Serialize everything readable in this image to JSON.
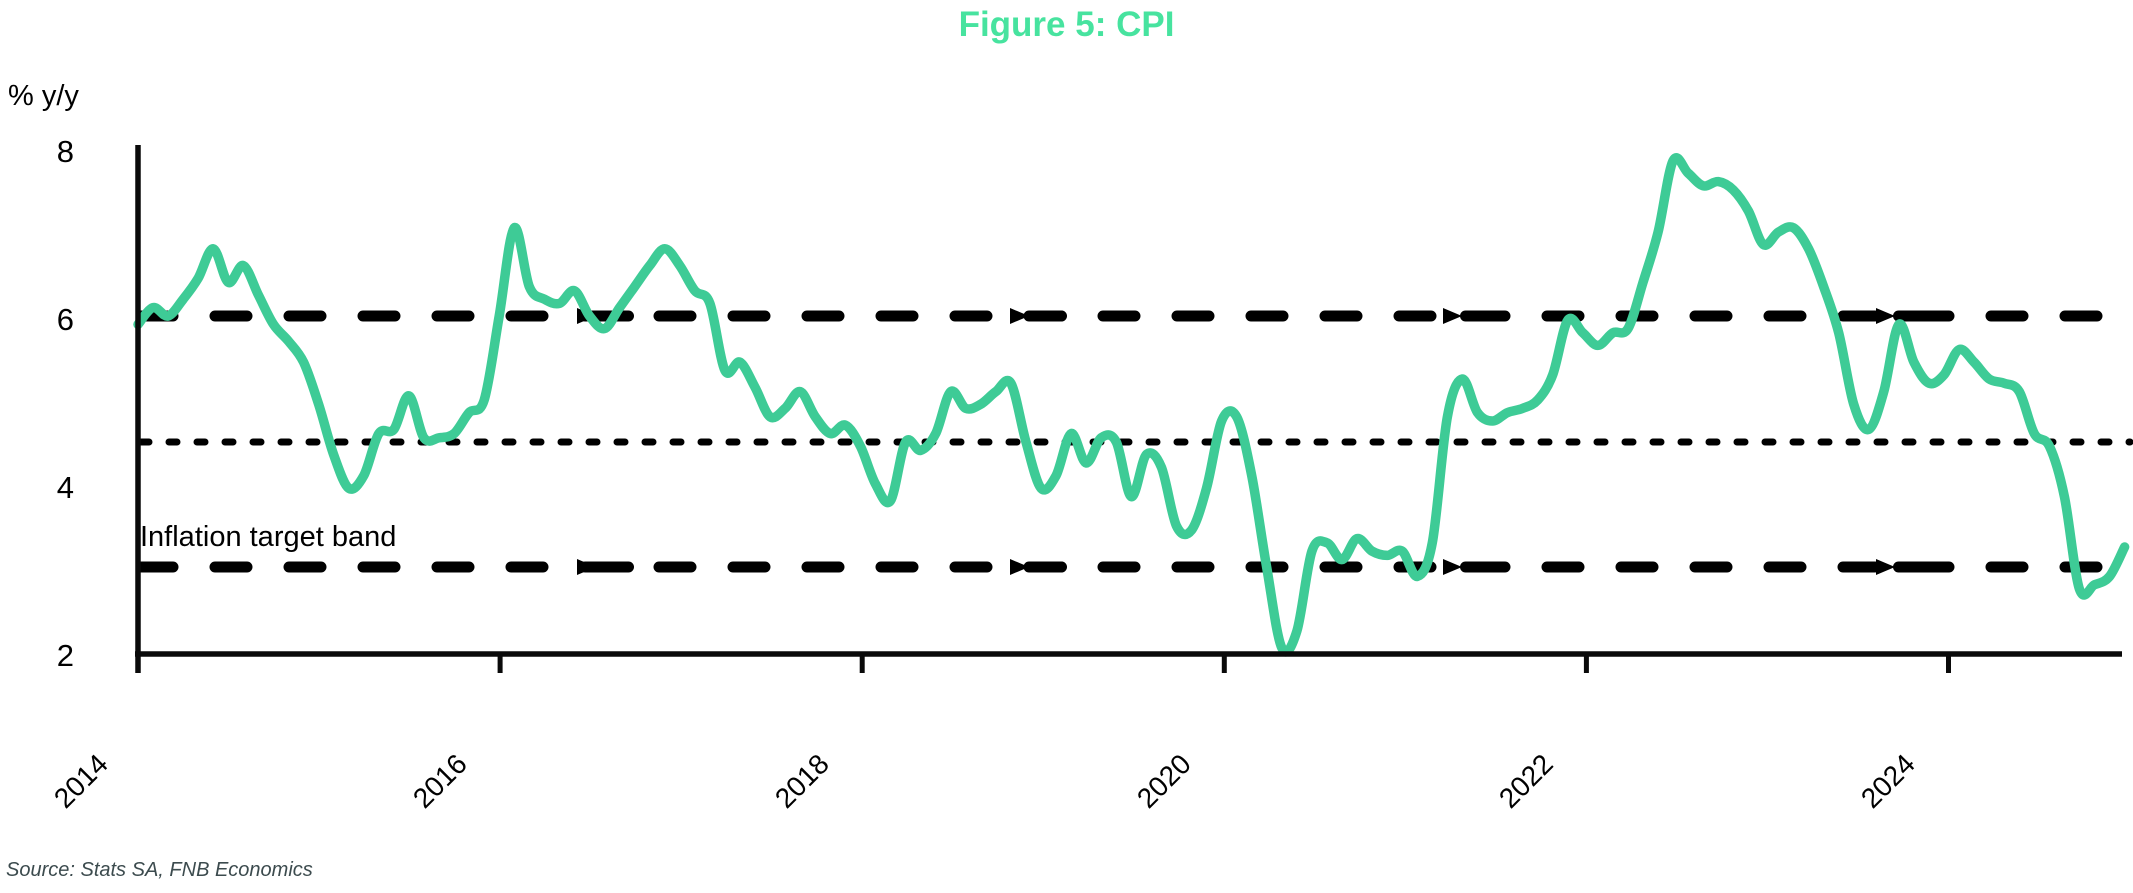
{
  "title": "Figure 5: CPI",
  "source": "Source: Stats SA, FNB Economics",
  "annotation": "Inflation target band",
  "colors": {
    "line": "#3ECB96",
    "title": "#47E39F",
    "axis": "#0A0A0A",
    "band_lines": "#000000",
    "source_text": "#3C4B4E"
  },
  "chart_data": {
    "type": "line",
    "title": "Figure 5: CPI",
    "ylabel": "% y/y",
    "xlabel": "",
    "ylim": [
      2,
      8
    ],
    "yticks": [
      8,
      6,
      4,
      2
    ],
    "ytick_labels": [
      "8",
      "6",
      "4",
      "2"
    ],
    "xtick_labels": [
      "2014",
      "2016",
      "2018",
      "2020",
      "2022",
      "2024"
    ],
    "x_start": "2014-01",
    "x_end": "2025-01",
    "frequency": "monthly",
    "grid": "off",
    "legend": "off",
    "series": [
      {
        "name": "CPI % y/y",
        "values": [
          5.9,
          6.1,
          6.0,
          6.2,
          6.45,
          6.8,
          6.4,
          6.6,
          6.25,
          5.9,
          5.7,
          5.45,
          4.95,
          4.35,
          3.95,
          4.1,
          4.6,
          4.65,
          5.05,
          4.55,
          4.55,
          4.6,
          4.85,
          5.0,
          6.0,
          7.05,
          6.35,
          6.2,
          6.15,
          6.3,
          6.0,
          5.85,
          6.1,
          6.35,
          6.6,
          6.8,
          6.6,
          6.3,
          6.15,
          5.35,
          5.45,
          5.15,
          4.8,
          4.9,
          5.1,
          4.8,
          4.6,
          4.7,
          4.45,
          4.0,
          3.8,
          4.5,
          4.4,
          4.6,
          5.1,
          4.9,
          4.95,
          5.1,
          5.2,
          4.5,
          3.95,
          4.1,
          4.6,
          4.25,
          4.55,
          4.5,
          3.85,
          4.35,
          4.2,
          3.5,
          3.45,
          3.95,
          4.75,
          4.8,
          4.1,
          3.0,
          2.05,
          2.25,
          3.2,
          3.3,
          3.1,
          3.35,
          3.2,
          3.15,
          3.2,
          2.9,
          3.3,
          4.8,
          5.25,
          4.85,
          4.75,
          4.85,
          4.9,
          5.0,
          5.3,
          5.95,
          5.8,
          5.65,
          5.8,
          5.85,
          6.4,
          7.0,
          7.85,
          7.7,
          7.55,
          7.6,
          7.5,
          7.25,
          6.85,
          7.0,
          7.05,
          6.8,
          6.35,
          5.8,
          4.95,
          4.65,
          5.1,
          5.9,
          5.45,
          5.2,
          5.3,
          5.6,
          5.45,
          5.25,
          5.2,
          5.1,
          4.6,
          4.45,
          3.85,
          2.75,
          2.8,
          2.9,
          3.25
        ]
      }
    ],
    "reference_lines": [
      {
        "label": "Inflation target band upper",
        "value": 6,
        "style": "thick-dashed"
      },
      {
        "label": "Inflation target band midpoint",
        "value": 4.5,
        "style": "dotted"
      },
      {
        "label": "Inflation target band lower",
        "value": 3,
        "style": "thick-dashed"
      }
    ],
    "annotation": "Inflation target band"
  }
}
